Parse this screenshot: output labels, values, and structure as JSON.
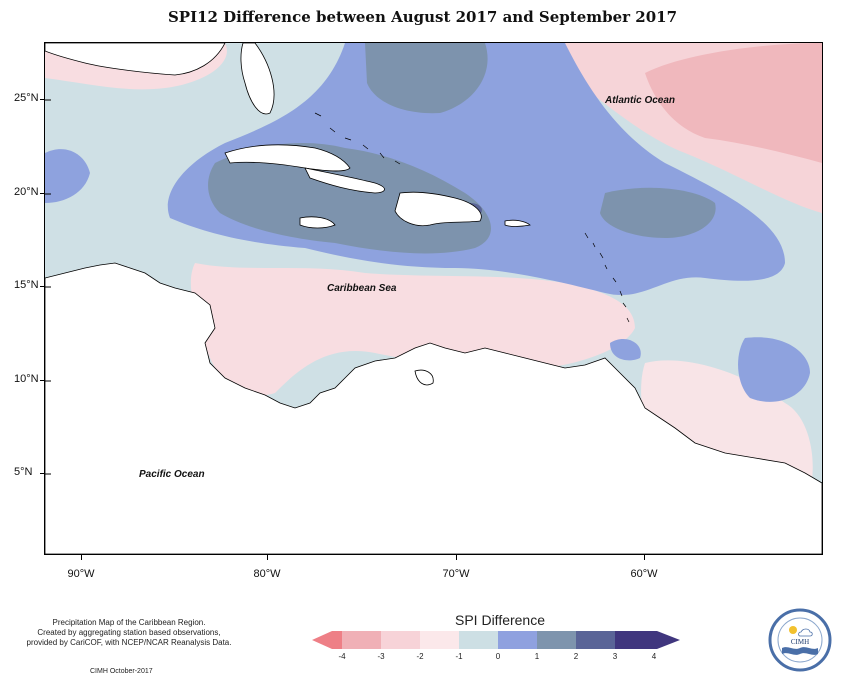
{
  "title": "SPI12 Difference between August 2017 and September 2017",
  "map": {
    "lat_labels": [
      "25°N",
      "20°N",
      "15°N",
      "10°N",
      "5°N"
    ],
    "lon_labels": [
      "90°W",
      "80°W",
      "70°W",
      "60°W"
    ],
    "ocean_labels": {
      "atlantic": "Atlantic Ocean",
      "caribbean": "Caribbean Sea",
      "pacific": "Pacific Ocean"
    }
  },
  "legend": {
    "title": "SPI Difference",
    "ticks": [
      "-4",
      "-3",
      "-2",
      "-1",
      "0",
      "1",
      "2",
      "3",
      "4"
    ],
    "colors": [
      "#ee7f86",
      "#f0b0b6",
      "#f7d3d8",
      "#fbe8ea",
      "#cddfe4",
      "#8fa1df",
      "#7e94ad",
      "#5a6497",
      "#40367e"
    ]
  },
  "footer": {
    "note_line1": "Precipitation Map of the Caribbean Region.",
    "note_line2": "Created by aggregating station based observations,",
    "note_line3": "provided by CariCOF, with NCEP/NCAR Reanalysis Data.",
    "credit": "CIMH October-2017"
  },
  "logo": {
    "text": "CIMH"
  }
}
